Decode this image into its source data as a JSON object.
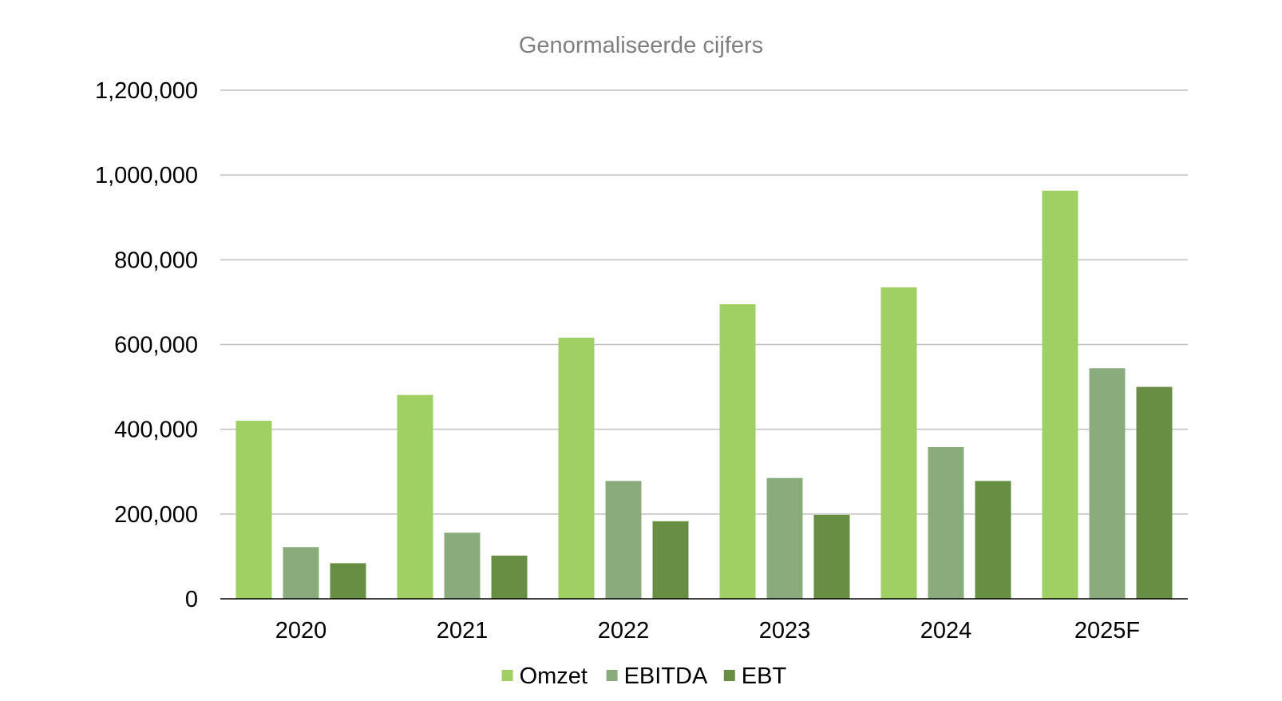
{
  "chart_data": {
    "type": "bar",
    "title": "Genormaliseerde cijfers",
    "xlabel": "",
    "ylabel": "",
    "categories": [
      "2020",
      "2021",
      "2022",
      "2023",
      "2024",
      "2025F"
    ],
    "series": [
      {
        "name": "Omzet",
        "color": "#a0cf63",
        "values": [
          420000,
          481000,
          616000,
          695000,
          735000,
          963000
        ]
      },
      {
        "name": "EBITDA",
        "color": "#8aac7c",
        "values": [
          122000,
          156000,
          278000,
          285000,
          358000,
          544000
        ]
      },
      {
        "name": "EBT",
        "color": "#668f44",
        "values": [
          84000,
          102000,
          183000,
          198000,
          278000,
          500000
        ]
      }
    ],
    "ylim": [
      0,
      1200000
    ],
    "yticks": [
      0,
      200000,
      400000,
      600000,
      800000,
      1000000,
      1200000
    ],
    "ytick_labels": [
      "0",
      "200,000",
      "400,000",
      "600,000",
      "800,000",
      "1,000,000",
      "1,200,000"
    ],
    "grid": true,
    "legend_position": "bottom"
  }
}
